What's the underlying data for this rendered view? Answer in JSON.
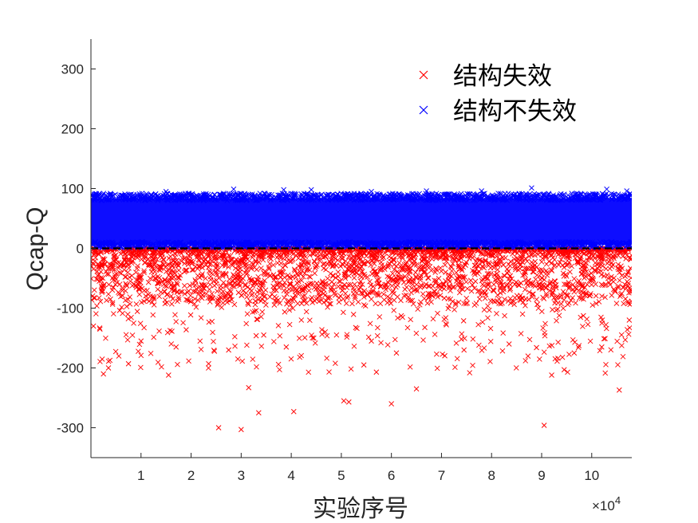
{
  "chart_data": {
    "type": "scatter",
    "title": "",
    "xlabel": "实验序号",
    "ylabel": "Qcap-Q",
    "x_exponent_label": "×10",
    "x_exponent_power": "4",
    "xlim": [
      0,
      10.8
    ],
    "ylim": [
      -350,
      350
    ],
    "xticks": [
      1,
      2,
      3,
      4,
      5,
      6,
      7,
      8,
      9,
      10
    ],
    "yticks": [
      300,
      200,
      100,
      0,
      -100,
      -200,
      -300
    ],
    "xtick_labels": [
      "1",
      "2",
      "3",
      "4",
      "5",
      "6",
      "7",
      "8",
      "9",
      "10"
    ],
    "ytick_labels": [
      "300",
      "200",
      "100",
      "0",
      "-100",
      "-200",
      "-300"
    ],
    "reference_line": {
      "y": 0,
      "style": "dashed",
      "color": "#000000"
    },
    "legend_position": "top-right",
    "series": [
      {
        "name": "结构失效",
        "color": "#ff0000",
        "marker": "x",
        "y_range_dense": [
          -100,
          0
        ],
        "y_min": -303,
        "notable_points": [
          [
            2.55,
            -300
          ],
          [
            3.0,
            -303
          ],
          [
            3.35,
            -275
          ],
          [
            4.05,
            -273
          ],
          [
            9.05,
            -296
          ],
          [
            5.05,
            -255
          ],
          [
            5.15,
            -257
          ],
          [
            6.0,
            -260
          ],
          [
            6.5,
            -235
          ],
          [
            10.55,
            -237
          ],
          [
            3.15,
            -233
          ],
          [
            0.25,
            -210
          ],
          [
            0.35,
            -200
          ],
          [
            0.75,
            -193
          ],
          [
            1.55,
            -212
          ],
          [
            5.45,
            -195
          ],
          [
            5.7,
            -207
          ],
          [
            9.2,
            -212
          ],
          [
            9.45,
            -203
          ],
          [
            2.35,
            -193
          ],
          [
            0.05,
            -130
          ],
          [
            0.18,
            -135
          ],
          [
            1.0,
            -155
          ],
          [
            1.7,
            -165
          ],
          [
            2.75,
            -170
          ],
          [
            3.45,
            -145
          ],
          [
            3.9,
            -165
          ],
          [
            4.45,
            -150
          ],
          [
            5.6,
            -155
          ],
          [
            6.1,
            -175
          ],
          [
            7.45,
            -170
          ],
          [
            8.35,
            -160
          ],
          [
            9.65,
            -175
          ],
          [
            10.2,
            -165
          ],
          [
            10.75,
            -120
          ]
        ]
      },
      {
        "name": "结构不失效",
        "color": "#0000ff",
        "marker": "x",
        "y_range_dense": [
          0,
          92
        ],
        "y_max": 101,
        "notable_points": [
          [
            2.85,
            99
          ],
          [
            3.85,
            98
          ],
          [
            4.4,
            98
          ],
          [
            6.7,
            96
          ],
          [
            8.8,
            101
          ],
          [
            10.3,
            99
          ],
          [
            10.7,
            96
          ],
          [
            1.5,
            95
          ],
          [
            5.6,
            95
          ],
          [
            7.8,
            96
          ]
        ]
      }
    ]
  }
}
